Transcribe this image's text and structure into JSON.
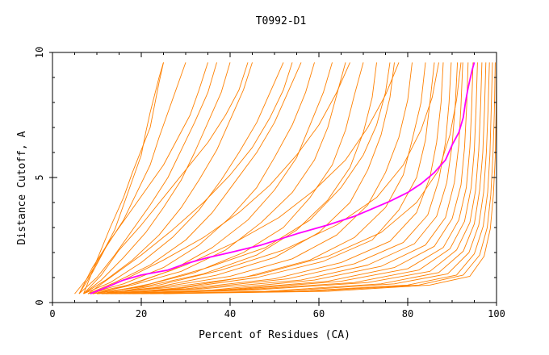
{
  "chart_data": {
    "type": "line",
    "title": "T0992-D1",
    "xlabel": "Percent of Residues (CA)",
    "ylabel": "Distance Cutoff, A",
    "xlim": [
      0,
      100
    ],
    "ylim": [
      0,
      10
    ],
    "x_ticks": [
      "0",
      "20",
      "40",
      "60",
      "80",
      "100"
    ],
    "y_ticks": [
      "0",
      "5",
      "10"
    ],
    "grid": false,
    "legend": "none",
    "colors": {
      "background_series": "#ff8000",
      "highlight_series": "#ff00ff",
      "axis": "#000000"
    },
    "highlight_series": {
      "x": [
        8.5,
        12,
        16,
        20,
        26,
        30,
        35,
        40,
        47,
        55,
        62,
        68,
        72,
        76,
        80,
        83,
        86,
        88.5,
        90,
        91.5,
        92.5,
        93,
        93.5,
        94,
        94.5,
        95
      ],
      "y": [
        0.35,
        0.6,
        0.9,
        1.1,
        1.3,
        1.55,
        1.8,
        2.0,
        2.3,
        2.75,
        3.1,
        3.45,
        3.75,
        4.05,
        4.4,
        4.75,
        5.2,
        5.7,
        6.3,
        6.8,
        7.4,
        8.0,
        8.5,
        8.9,
        9.3,
        9.6
      ]
    },
    "series": [
      {
        "x": [
          5,
          8,
          11,
          14,
          16,
          18,
          20,
          21,
          22,
          23,
          24,
          25
        ],
        "y": [
          0.35,
          1.0,
          1.9,
          2.9,
          3.9,
          4.9,
          5.9,
          6.8,
          7.6,
          8.3,
          9.0,
          9.6
        ]
      },
      {
        "x": [
          6,
          9,
          12,
          16,
          19,
          22,
          24,
          26,
          28,
          30
        ],
        "y": [
          0.35,
          1.2,
          2.2,
          3.3,
          4.4,
          5.5,
          6.6,
          7.6,
          8.6,
          9.6
        ]
      },
      {
        "x": [
          6,
          10,
          14,
          18,
          22,
          26,
          29,
          32,
          35,
          37
        ],
        "y": [
          0.35,
          1.0,
          1.9,
          2.9,
          3.9,
          5.0,
          6.1,
          7.2,
          8.4,
          9.6
        ]
      },
      {
        "x": [
          7,
          11,
          16,
          21,
          25,
          29,
          32,
          35,
          38,
          40
        ],
        "y": [
          0.35,
          0.9,
          1.8,
          2.8,
          3.8,
          4.9,
          6.0,
          7.2,
          8.4,
          9.6
        ]
      },
      {
        "x": [
          7,
          12,
          18,
          24,
          29,
          33,
          37,
          40,
          43,
          45
        ],
        "y": [
          0.35,
          0.9,
          1.7,
          2.7,
          3.8,
          4.9,
          6.1,
          7.3,
          8.5,
          9.6
        ]
      },
      {
        "x": [
          7,
          13,
          20,
          27,
          33,
          38,
          42,
          46,
          49,
          52
        ],
        "y": [
          0.35,
          0.8,
          1.6,
          2.6,
          3.7,
          4.9,
          6.0,
          7.2,
          8.4,
          9.6
        ]
      },
      {
        "x": [
          8,
          14,
          22,
          30,
          36,
          41,
          46,
          50,
          53,
          56
        ],
        "y": [
          0.35,
          0.8,
          1.5,
          2.5,
          3.6,
          4.8,
          6.0,
          7.2,
          8.4,
          9.6
        ]
      },
      {
        "x": [
          8,
          16,
          25,
          33,
          40,
          46,
          50,
          54,
          57,
          59
        ],
        "y": [
          0.35,
          0.75,
          1.4,
          2.3,
          3.4,
          4.6,
          5.8,
          7.1,
          8.4,
          9.6
        ]
      },
      {
        "x": [
          8,
          17,
          27,
          36,
          44,
          50,
          55,
          58,
          61,
          63
        ],
        "y": [
          0.35,
          0.7,
          1.3,
          2.2,
          3.3,
          4.5,
          5.8,
          7.1,
          8.4,
          9.6
        ]
      },
      {
        "x": [
          9,
          18,
          29,
          39,
          47,
          54,
          59,
          62,
          64,
          66
        ],
        "y": [
          0.35,
          0.7,
          1.25,
          2.1,
          3.2,
          4.4,
          5.7,
          7.0,
          8.3,
          9.6
        ]
      },
      {
        "x": [
          9,
          20,
          32,
          43,
          52,
          58,
          63,
          66,
          68,
          70
        ],
        "y": [
          0.35,
          0.65,
          1.2,
          2.0,
          3.0,
          4.2,
          5.5,
          6.9,
          8.3,
          9.6
        ]
      },
      {
        "x": [
          9,
          21,
          34,
          46,
          55,
          62,
          67,
          70,
          72,
          73
        ],
        "y": [
          0.35,
          0.65,
          1.15,
          1.9,
          2.9,
          4.1,
          5.4,
          6.8,
          8.2,
          9.6
        ]
      },
      {
        "x": [
          10,
          23,
          37,
          50,
          60,
          67,
          71,
          74,
          76,
          77
        ],
        "y": [
          0.35,
          0.6,
          1.1,
          1.8,
          2.8,
          4.0,
          5.3,
          6.7,
          8.2,
          9.6
        ]
      },
      {
        "x": [
          10,
          24,
          40,
          54,
          64,
          71,
          75,
          78,
          80,
          81
        ],
        "y": [
          0.35,
          0.6,
          1.05,
          1.75,
          2.7,
          3.9,
          5.2,
          6.6,
          8.1,
          9.6
        ]
      },
      {
        "x": [
          10,
          26,
          43,
          58,
          68,
          75,
          79,
          81,
          83,
          84
        ],
        "y": [
          0.35,
          0.6,
          1.0,
          1.7,
          2.6,
          3.8,
          5.1,
          6.5,
          8.0,
          9.6
        ]
      },
      {
        "x": [
          11,
          28,
          46,
          61,
          72,
          78,
          82,
          84,
          85,
          86
        ],
        "y": [
          0.35,
          0.55,
          1.0,
          1.65,
          2.5,
          3.7,
          5.0,
          6.5,
          8.0,
          9.6
        ]
      },
      {
        "x": [
          11,
          30,
          50,
          65,
          76,
          82,
          85,
          86.5,
          87.5,
          88
        ],
        "y": [
          0.35,
          0.55,
          0.95,
          1.6,
          2.45,
          3.6,
          5.0,
          6.4,
          8.0,
          9.6
        ]
      },
      {
        "x": [
          12,
          32,
          53,
          68,
          79,
          84.5,
          87,
          88.5,
          89.3,
          89.8
        ],
        "y": [
          0.35,
          0.55,
          0.95,
          1.55,
          2.4,
          3.5,
          4.9,
          6.4,
          8.0,
          9.6
        ]
      },
      {
        "x": [
          12,
          34,
          56,
          71,
          81.5,
          86.5,
          88.8,
          90,
          90.7,
          91.2
        ],
        "y": [
          0.35,
          0.55,
          0.9,
          1.5,
          2.35,
          3.45,
          4.8,
          6.3,
          7.9,
          9.6
        ]
      },
      {
        "x": [
          13,
          36,
          59,
          74,
          84,
          88.5,
          90.5,
          91.5,
          92,
          92.4
        ],
        "y": [
          0.35,
          0.5,
          0.9,
          1.45,
          2.3,
          3.4,
          4.8,
          6.3,
          7.9,
          9.6
        ]
      },
      {
        "x": [
          13,
          38,
          62,
          77,
          86,
          90,
          92,
          92.8,
          93.3,
          93.6
        ],
        "y": [
          0.35,
          0.5,
          0.85,
          1.4,
          2.25,
          3.35,
          4.7,
          6.2,
          7.9,
          9.6
        ]
      },
      {
        "x": [
          14,
          40,
          65,
          80,
          88,
          91.5,
          93.2,
          94,
          94.4,
          94.7
        ],
        "y": [
          0.35,
          0.5,
          0.85,
          1.35,
          2.2,
          3.3,
          4.6,
          6.2,
          7.8,
          9.6
        ]
      },
      {
        "x": [
          15,
          42,
          68,
          82.5,
          89.5,
          92.8,
          94.3,
          95,
          95.4,
          95.7
        ],
        "y": [
          0.35,
          0.5,
          0.8,
          1.3,
          2.15,
          3.25,
          4.6,
          6.1,
          7.8,
          9.6
        ]
      },
      {
        "x": [
          16,
          45,
          71,
          85,
          91,
          94,
          95.3,
          96,
          96.4,
          96.7
        ],
        "y": [
          0.35,
          0.5,
          0.8,
          1.25,
          2.1,
          3.2,
          4.5,
          6.1,
          7.8,
          9.6
        ]
      },
      {
        "x": [
          17,
          48,
          74,
          87,
          92.5,
          95,
          96.2,
          96.9,
          97.3,
          97.6
        ],
        "y": [
          0.35,
          0.45,
          0.75,
          1.2,
          2.05,
          3.15,
          4.5,
          6.0,
          7.7,
          9.6
        ]
      },
      {
        "x": [
          18,
          51,
          77,
          89,
          93.8,
          96,
          97.1,
          97.7,
          98.1,
          98.4
        ],
        "y": [
          0.35,
          0.45,
          0.75,
          1.15,
          2.0,
          3.1,
          4.4,
          6.0,
          7.7,
          9.6
        ]
      },
      {
        "x": [
          20,
          55,
          80,
          91,
          95,
          97,
          98,
          98.5,
          98.8,
          99.1
        ],
        "y": [
          0.35,
          0.45,
          0.7,
          1.1,
          1.95,
          3.05,
          4.4,
          5.9,
          7.7,
          9.6
        ]
      },
      {
        "x": [
          22,
          58,
          82.5,
          92.5,
          96.2,
          97.9,
          98.7,
          99.2,
          99.5,
          99.7
        ],
        "y": [
          0.35,
          0.45,
          0.7,
          1.1,
          1.9,
          3.0,
          4.3,
          5.9,
          7.6,
          9.6
        ]
      },
      {
        "x": [
          25,
          62,
          85,
          94,
          97.2,
          98.6,
          99.3,
          99.7,
          99.9,
          100
        ],
        "y": [
          0.35,
          0.45,
          0.7,
          1.05,
          1.85,
          2.95,
          4.3,
          5.8,
          7.6,
          9.6
        ]
      },
      {
        "x": [
          6,
          9,
          13,
          17,
          21,
          25,
          28,
          31,
          33,
          35
        ],
        "y": [
          0.35,
          1.4,
          2.5,
          3.5,
          4.5,
          5.5,
          6.5,
          7.5,
          8.5,
          9.6
        ]
      },
      {
        "x": [
          7,
          11,
          15,
          20,
          25,
          30,
          35,
          39,
          42,
          44
        ],
        "y": [
          0.35,
          1.1,
          2.1,
          3.1,
          4.2,
          5.3,
          6.4,
          7.5,
          8.5,
          9.6
        ]
      },
      {
        "x": [
          8,
          13,
          20,
          27,
          34,
          40,
          45,
          49,
          52,
          54
        ],
        "y": [
          0.35,
          1.0,
          1.9,
          2.9,
          4.0,
          5.1,
          6.2,
          7.4,
          8.5,
          9.6
        ]
      },
      {
        "x": [
          9,
          16,
          25,
          34,
          42,
          49,
          55,
          60,
          64,
          67
        ],
        "y": [
          0.35,
          0.9,
          1.7,
          2.6,
          3.6,
          4.7,
          5.9,
          7.1,
          8.4,
          9.6
        ]
      },
      {
        "x": [
          10,
          19,
          30,
          41,
          51,
          59,
          66,
          71,
          75,
          78
        ],
        "y": [
          0.35,
          0.8,
          1.5,
          2.4,
          3.4,
          4.5,
          5.7,
          7.0,
          8.3,
          9.6
        ]
      },
      {
        "x": [
          12,
          24,
          38,
          52,
          64,
          73,
          79,
          83,
          85.5,
          87
        ],
        "y": [
          0.35,
          0.7,
          1.3,
          2.1,
          3.1,
          4.2,
          5.5,
          6.9,
          8.2,
          9.6
        ]
      },
      {
        "x": [
          14,
          29,
          46,
          62,
          74,
          82,
          87,
          89.5,
          91,
          92
        ],
        "y": [
          0.35,
          0.6,
          1.1,
          1.85,
          2.8,
          4.0,
          5.3,
          6.7,
          8.1,
          9.6
        ]
      },
      {
        "x": [
          7,
          10,
          13,
          16,
          18,
          20,
          22,
          23,
          24,
          25
        ],
        "y": [
          0.35,
          1.7,
          3.0,
          4.2,
          5.2,
          6.1,
          7.0,
          7.9,
          8.8,
          9.6
        ]
      },
      {
        "x": [
          11,
          22,
          35,
          48,
          58,
          65,
          70,
          73,
          75,
          76
        ],
        "y": [
          0.35,
          0.75,
          1.4,
          2.2,
          3.3,
          4.6,
          5.9,
          7.1,
          8.4,
          9.6
        ]
      }
    ]
  }
}
